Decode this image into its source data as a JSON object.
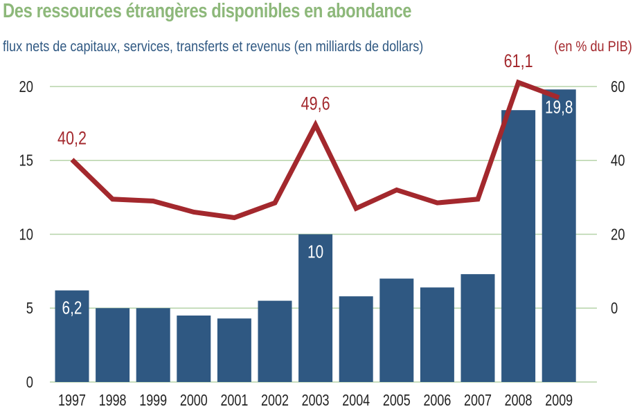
{
  "title": "Des ressources étrangères disponibles en abondance",
  "subtitle_left": "flux nets de capitaux, services, transferts et revenus (en milliards de dollars)",
  "subtitle_right": "(en % du PIB)",
  "colors": {
    "title": "#8db87a",
    "bar": "#2f5882",
    "line": "#a3282d",
    "grid": "#b5d3a8"
  },
  "chart_data": {
    "type": "bar+line",
    "categories": [
      "1997",
      "1998",
      "1999",
      "2000",
      "2001",
      "2002",
      "2003",
      "2004",
      "2005",
      "2006",
      "2007",
      "2008",
      "2009"
    ],
    "series": [
      {
        "axis": "left",
        "type": "bar",
        "values": [
          6.2,
          5.0,
          5.0,
          4.5,
          4.3,
          5.5,
          10.0,
          5.8,
          7.0,
          6.4,
          7.3,
          18.4,
          19.8
        ],
        "labels": {
          "0": "6,2",
          "6": "10",
          "12": "19,8"
        }
      },
      {
        "axis": "right",
        "type": "line",
        "values": [
          40.2,
          29.5,
          29.0,
          26.0,
          24.5,
          28.5,
          49.6,
          27.0,
          32.0,
          28.5,
          29.5,
          61.1,
          57.0
        ],
        "labels": {
          "0": "40,2",
          "6": "49,6",
          "11": "61,1"
        }
      }
    ],
    "y_left": {
      "ticks": [
        0,
        5,
        10,
        15,
        20
      ],
      "ylim": [
        0,
        20
      ]
    },
    "y_right": {
      "ticks": [
        0,
        20,
        40,
        60
      ],
      "ylim": [
        -20,
        60
      ]
    },
    "grid": true
  }
}
